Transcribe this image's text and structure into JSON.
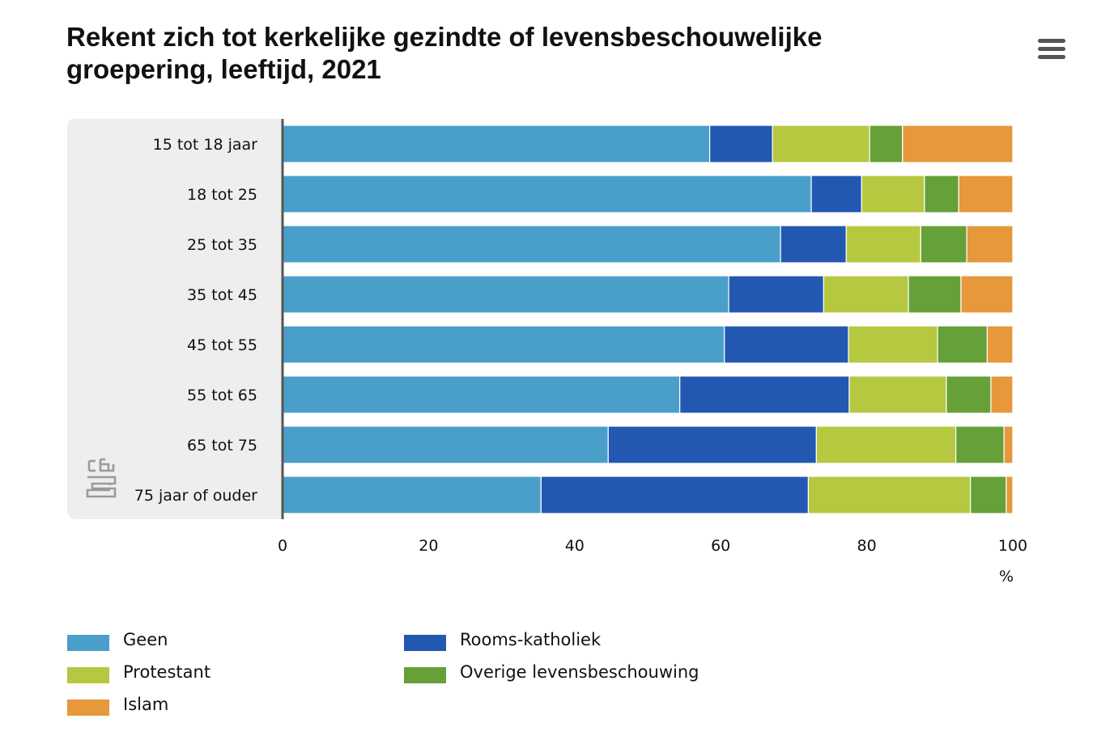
{
  "header": {
    "title": "Rekent zich tot kerkelijke gezindte of levensbeschouwelijke groepering, leeftijd, 2021",
    "menu_icon": "hamburger-menu-icon"
  },
  "logo": {
    "name": "cbs-logo",
    "text": "cbs"
  },
  "colors": {
    "Geen": "#4a9fca",
    "Rooms-katholiek": "#2358b2",
    "Protestant": "#b5c840",
    "Overige levensbeschouwing": "#66a038",
    "Islam": "#e6983a",
    "plot_background": "#eeeeee",
    "axis": "#555555"
  },
  "chart_data": {
    "type": "bar",
    "orientation": "horizontal",
    "stacked": true,
    "title": "Rekent zich tot kerkelijke gezindte of levensbeschouwelijke groepering, leeftijd, 2021",
    "xlabel": "%",
    "ylabel": "",
    "xlim": [
      0,
      100
    ],
    "x_ticks": [
      "0",
      "20",
      "40",
      "60",
      "80",
      "100"
    ],
    "grid": false,
    "legend_position": "bottom",
    "categories": [
      "15 tot 18 jaar",
      "18 tot 25",
      "25 tot 35",
      "35 tot 45",
      "45 tot 55",
      "55 tot 65",
      "65 tot 75",
      "75 jaar of ouder"
    ],
    "series": [
      {
        "name": "Geen",
        "values": [
          58.5,
          72.4,
          68.2,
          61.1,
          60.5,
          54.4,
          44.6,
          35.4
        ]
      },
      {
        "name": "Rooms-katholiek",
        "values": [
          8.6,
          6.9,
          9.0,
          13.0,
          17.0,
          23.2,
          28.5,
          36.6
        ]
      },
      {
        "name": "Protestant",
        "values": [
          13.3,
          8.6,
          10.2,
          11.6,
          12.2,
          13.3,
          19.1,
          22.2
        ]
      },
      {
        "name": "Overige levensbeschouwing",
        "values": [
          4.5,
          4.7,
          6.3,
          7.2,
          6.8,
          6.1,
          6.6,
          4.9
        ]
      },
      {
        "name": "Islam",
        "values": [
          15.1,
          7.4,
          6.3,
          7.1,
          3.5,
          3.0,
          1.2,
          0.9
        ]
      }
    ]
  },
  "legend": [
    {
      "label": "Geen",
      "color": "#4a9fca"
    },
    {
      "label": "Protestant",
      "color": "#b5c840"
    },
    {
      "label": "Islam",
      "color": "#e6983a"
    },
    {
      "label": "Rooms-katholiek",
      "color": "#2358b2"
    },
    {
      "label": "Overige levensbeschouwing",
      "color": "#66a038"
    }
  ]
}
